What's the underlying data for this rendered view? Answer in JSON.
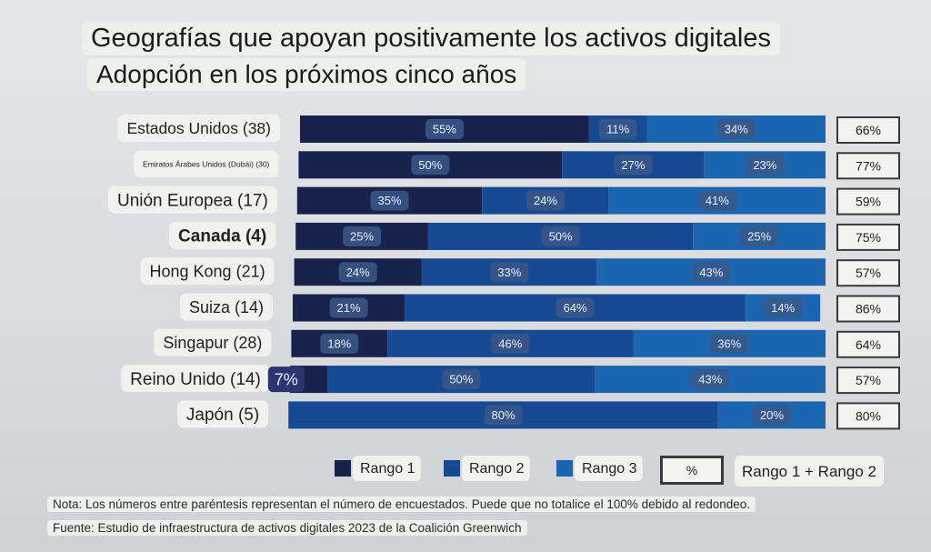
{
  "title": "Geografías que apoyan positivamente los activos digitales",
  "subtitle": "Adopción en los próximos cinco años",
  "chart_data": {
    "type": "bar",
    "orientation": "horizontal",
    "stacked": true,
    "categories": [
      "Estados Unidos (38)",
      "Emiratos Árabes Unidos (Dubái) (30)",
      "Unión Europea (17)",
      "Canada (4)",
      "Hong Kong (21)",
      "Suiza (14)",
      "Singapur (28)",
      "Reino Unido (14)",
      "Japón (5)"
    ],
    "series": [
      {
        "name": "Rango 1",
        "values": [
          55,
          50,
          35,
          25,
          24,
          21,
          18,
          7,
          0
        ],
        "labels": [
          "55%",
          "50%",
          "35%",
          "25%",
          "24%",
          "21%",
          "18%",
          "7%",
          ""
        ]
      },
      {
        "name": "Rango 2",
        "values": [
          11,
          27,
          24,
          50,
          33,
          64,
          46,
          50,
          80
        ],
        "labels": [
          "11%",
          "27%",
          "24%",
          "50%",
          "33%",
          "64%",
          "46%",
          "50%",
          "80%"
        ]
      },
      {
        "name": "Rango 3",
        "values": [
          34,
          23,
          41,
          25,
          43,
          14,
          36,
          43,
          20
        ],
        "labels": [
          "34%",
          "23%",
          "41%",
          "25%",
          "43%",
          "14%",
          "36%",
          "43%",
          "20%"
        ]
      }
    ],
    "totals": {
      "name": "Rango 1 + Rango 2",
      "labels": [
        "66%",
        "77%",
        "59%",
        "75%",
        "57%",
        "86%",
        "64%",
        "57%",
        "80%"
      ]
    },
    "legend": {
      "items": [
        "Rango 1",
        "Rango 2",
        "Rango 3"
      ],
      "box_label": "%",
      "total_label": "Rango 1 + Rango 2",
      "placement": "bottom"
    },
    "xlim": [
      0,
      100
    ],
    "colors": {
      "rango1": "#18224d",
      "rango2": "#164a93",
      "rango3": "#1c66b1",
      "label_pill": "#3b5788"
    }
  },
  "notes": {
    "note": "Nota: Los números entre paréntesis representan el número de encuestados. Puede que no totalice el 100% debido al redondeo.",
    "source": "Fuente: Estudio de infraestructura de activos digitales 2023 de la Coalición Greenwich"
  }
}
